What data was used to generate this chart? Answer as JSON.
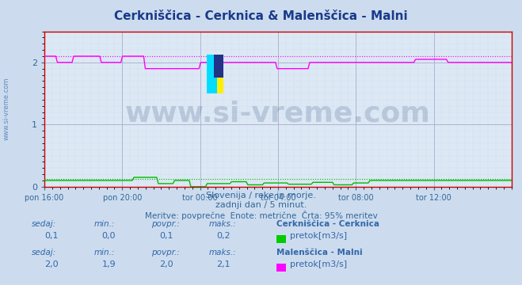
{
  "title": "Cerkniščica - Cerknica & Malenščica - Malni",
  "title_color": "#1a3a8a",
  "bg_color": "#ccdcee",
  "plot_bg_color": "#dce8f4",
  "grid_major_color": "#aaaacc",
  "grid_minor_color": "#ccccee",
  "xlabel_ticks": [
    "pon 16:00",
    "pon 20:00",
    "tor 00:00",
    "tor 04:00",
    "tor 08:00",
    "tor 12:00"
  ],
  "ylim": [
    0,
    2.5
  ],
  "yticks": [
    0,
    1,
    2
  ],
  "tick_color": "#336699",
  "subtitle1": "Slovenija / reke in morje.",
  "subtitle2": "zadnji dan / 5 minut.",
  "subtitle3": "Meritve: povprečne  Enote: metrične  Črta: 95% meritev",
  "subtitle_color": "#336699",
  "watermark": "www.si-vreme.com",
  "watermark_color": "#1a3a6a",
  "watermark_alpha": 0.18,
  "series1_color": "#00bb00",
  "series2_color": "#ff00ff",
  "axis_color": "#cc0000",
  "left_label": "www.si-vreme.com",
  "left_label_color": "#3366aa",
  "stat_label_color": "#3366aa",
  "stat_value_color": "#3366aa",
  "legend1_name": "Cerkniščica - Cerknica",
  "legend1_swatch": "#00cc00",
  "legend1_unit": "pretok[m3/s]",
  "legend2_name": "Malenščica - Malni",
  "legend2_swatch": "#ff00ff",
  "legend2_unit": "pretok[m3/s]",
  "stat1_sedaj": "0,1",
  "stat1_min": "0,0",
  "stat1_povpr": "0,1",
  "stat1_maks": "0,2",
  "stat2_sedaj": "2,0",
  "stat2_min": "1,9",
  "stat2_povpr": "2,0",
  "stat2_maks": "2,1",
  "n_points": 288
}
